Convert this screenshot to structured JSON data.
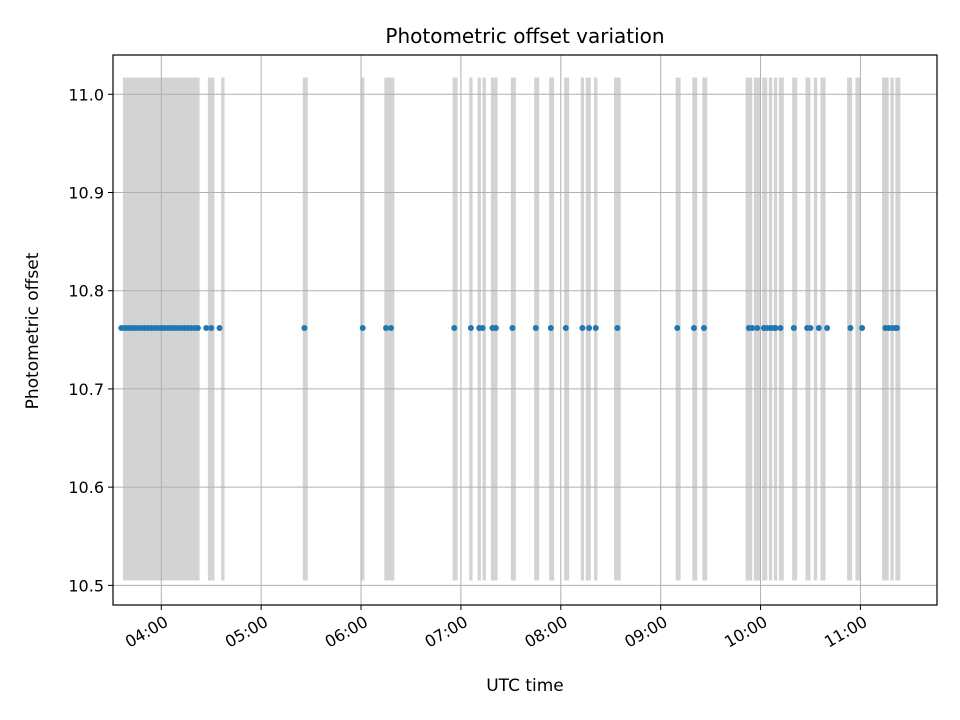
{
  "chart_data": {
    "type": "scatter",
    "title": "Photometric offset variation",
    "xlabel": "UTC time",
    "ylabel": "Photometric offset",
    "x_axis": {
      "kind": "time",
      "range": [
        "03:31",
        "11:46"
      ],
      "ticks": [
        "04:00",
        "05:00",
        "06:00",
        "07:00",
        "08:00",
        "09:00",
        "10:00",
        "11:00"
      ]
    },
    "y_axis": {
      "range": [
        10.48,
        11.04
      ],
      "ticks": [
        10.5,
        10.6,
        10.7,
        10.8,
        10.9,
        11.0
      ]
    },
    "grid": true,
    "colors": {
      "points": "#1f77b4",
      "bands": "#d3d3d3",
      "grid": "#b0b0b0"
    },
    "band_range": [
      10.505,
      11.017
    ],
    "bands": [
      [
        "03:37",
        "04:23"
      ],
      [
        "04:28",
        "04:32"
      ],
      [
        "04:36",
        "04:38"
      ],
      [
        "05:25",
        "05:28"
      ],
      [
        "06:00",
        "06:02"
      ],
      [
        "06:14",
        "06:20"
      ],
      [
        "06:55",
        "06:58"
      ],
      [
        "07:05",
        "07:07"
      ],
      [
        "07:10",
        "07:12"
      ],
      [
        "07:13",
        "07:15"
      ],
      [
        "07:18",
        "07:22"
      ],
      [
        "07:30",
        "07:33"
      ],
      [
        "07:44",
        "07:47"
      ],
      [
        "07:53",
        "07:56"
      ],
      [
        "08:02",
        "08:05"
      ],
      [
        "08:12",
        "08:14"
      ],
      [
        "08:15",
        "08:18"
      ],
      [
        "08:20",
        "08:22"
      ],
      [
        "08:32",
        "08:36"
      ],
      [
        "09:09",
        "09:12"
      ],
      [
        "09:19",
        "09:22"
      ],
      [
        "09:25",
        "09:28"
      ],
      [
        "09:51",
        "09:55"
      ],
      [
        "09:56",
        "10:00"
      ],
      [
        "10:01",
        "10:04"
      ],
      [
        "10:05",
        "10:07"
      ],
      [
        "10:08",
        "10:10"
      ],
      [
        "10:11",
        "10:14"
      ],
      [
        "10:19",
        "10:22"
      ],
      [
        "10:27",
        "10:30"
      ],
      [
        "10:32",
        "10:34"
      ],
      [
        "10:36",
        "10:39"
      ],
      [
        "10:52",
        "10:55"
      ],
      [
        "10:57",
        "11:00"
      ],
      [
        "11:13",
        "11:17"
      ],
      [
        "11:18",
        "11:20"
      ],
      [
        "11:21",
        "11:24"
      ]
    ],
    "series": [
      {
        "y": 10.762,
        "x": [
          "03:36",
          "03:38",
          "03:40",
          "03:42",
          "03:44",
          "03:46",
          "03:48",
          "03:50",
          "03:52",
          "03:54",
          "03:56",
          "03:58",
          "04:00",
          "04:02",
          "04:04",
          "04:06",
          "04:08",
          "04:10",
          "04:12",
          "04:14",
          "04:16",
          "04:18",
          "04:20",
          "04:22",
          "04:27",
          "04:30",
          "04:35",
          "05:26",
          "06:01",
          "06:15",
          "06:18",
          "06:56",
          "07:06",
          "07:11",
          "07:13",
          "07:19",
          "07:21",
          "07:31",
          "07:45",
          "07:54",
          "08:03",
          "08:13",
          "08:17",
          "08:21",
          "08:34",
          "09:10",
          "09:20",
          "09:26",
          "09:53",
          "09:55",
          "09:58",
          "10:02",
          "10:04",
          "10:06",
          "10:08",
          "10:09",
          "10:12",
          "10:20",
          "10:28",
          "10:30",
          "10:35",
          "10:40",
          "10:54",
          "11:01",
          "11:15",
          "11:17",
          "11:19",
          "11:21",
          "11:22"
        ]
      }
    ]
  }
}
